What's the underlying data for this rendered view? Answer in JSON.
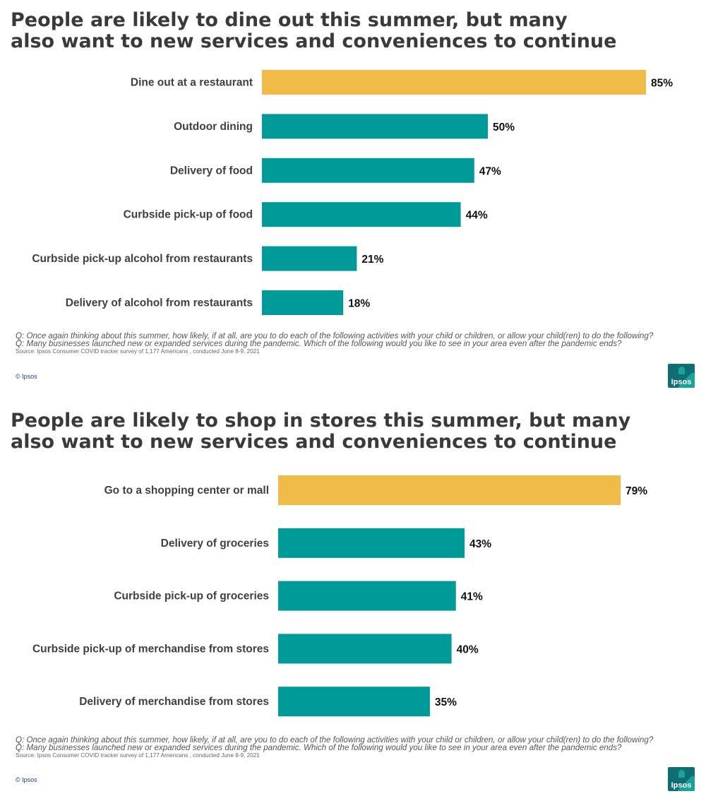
{
  "colors": {
    "highlight": "#F0BC47",
    "bar": "#009B98",
    "title": "#3A3A3A",
    "brand": "#0E6E74"
  },
  "panels": [
    {
      "title_line1": "People are likely to dine out this summer, but many",
      "title_line2": "also want to new services and conveniences to continue",
      "question1": "Q: Once again thinking about this summer, how likely, if at all, are you to do each of the following activities with your child or children, or allow your child(ren) to do the following?",
      "question2": "Q: Many businesses launched new or expanded services during the pandemic. Which of the following would you like to see in your area even after the pandemic ends?",
      "source": "Source: Ipsos Consumer COVID tracker survey of 1,177 Americans , conducted June 8-9, 2021",
      "copyright": "© Ipsos",
      "logo_text": "Ipsos"
    },
    {
      "title_line1": "People are likely to shop in stores this summer, but many",
      "title_line2": "also want to new services and conveniences to continue",
      "question1": "Q: Once again thinking about this summer, how likely, if at all, are you to do each of the following activities with your child or children, or allow your child(ren) to do the following?",
      "question2": "Q: Many businesses launched new or expanded services during the pandemic. Which of the following would you like to see in your area even after the pandemic ends?",
      "source": "Source: Ipsos Consumer COVID tracker survey of 1,177 Americans , conducted June 8-9, 2021",
      "copyright": "© Ipsos",
      "logo_text": "Ipsos"
    }
  ],
  "chart_data": [
    {
      "type": "bar",
      "orientation": "horizontal",
      "title": "People are likely to dine out this summer, but many also want to new services and conveniences to continue",
      "categories": [
        "Dine out at a restaurant",
        "Outdoor dining",
        "Delivery of food",
        "Curbside pick-up of food",
        "Curbside pick-up alcohol from restaurants",
        "Delivery of alcohol from restaurants"
      ],
      "values": [
        85,
        50,
        47,
        44,
        21,
        18
      ],
      "value_labels": [
        "85%",
        "50%",
        "47%",
        "44%",
        "21%",
        "18%"
      ],
      "highlight_index": 0,
      "xlim": [
        0,
        100
      ],
      "grid": false
    },
    {
      "type": "bar",
      "orientation": "horizontal",
      "title": "People are likely to shop in stores this summer, but many also want to new services and conveniences to continue",
      "categories": [
        "Go to a shopping center or mall",
        "Delivery of groceries",
        "Curbside pick-up of groceries",
        "Curbside pick-up of merchandise from stores",
        "Delivery of merchandise from stores"
      ],
      "values": [
        79,
        43,
        41,
        40,
        35
      ],
      "value_labels": [
        "79%",
        "43%",
        "41%",
        "40%",
        "35%"
      ],
      "highlight_index": 0,
      "xlim": [
        0,
        100
      ],
      "grid": false
    }
  ]
}
